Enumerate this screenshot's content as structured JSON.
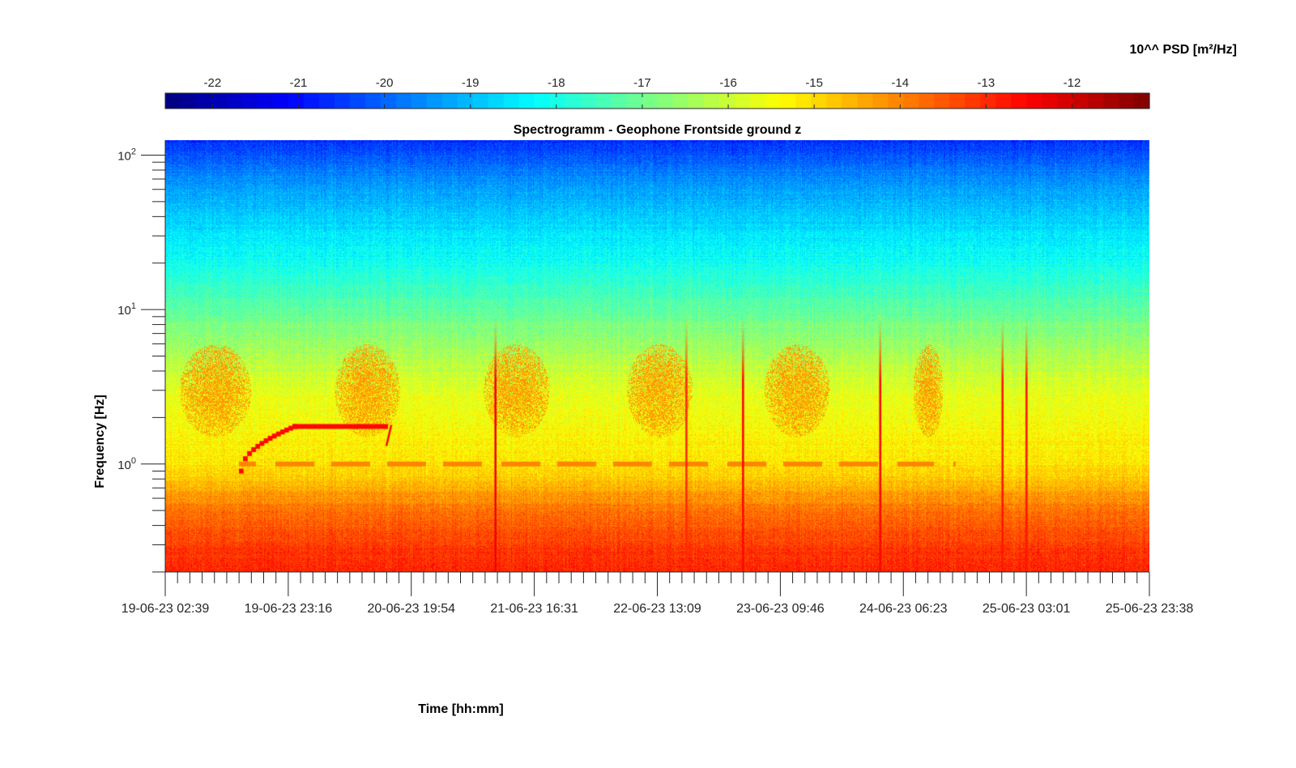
{
  "chart_data": {
    "type": "heatmap",
    "title": "Spectrogramm - Geophone Frontside ground z",
    "xlabel": "Time [hh:mm]",
    "ylabel": "Frequency [Hz]",
    "colorbar_label": "10^^ PSD [m²/Hz]",
    "colorbar_ticks": [
      -22,
      -21,
      -20,
      -19,
      -18,
      -17,
      -16,
      -15,
      -14,
      -13,
      -12
    ],
    "colorbar_range": [
      -22.55,
      -11.1
    ],
    "colormap": "jet",
    "x_tick_labels": [
      "19-06-23 02:39",
      "19-06-23 23:16",
      "20-06-23 19:54",
      "21-06-23 16:31",
      "22-06-23 13:09",
      "23-06-23 09:46",
      "24-06-23 06:23",
      "25-06-23 03:01",
      "25-06-23 23:38"
    ],
    "x_range": [
      "19-06-23 02:39",
      "25-06-23 23:38"
    ],
    "y_scale": "log",
    "y_range": [
      0.2,
      125
    ],
    "y_tick_values": [
      1,
      10,
      100
    ],
    "y_tick_labels": [
      {
        "base": "10",
        "exp": "0"
      },
      {
        "base": "10",
        "exp": "1"
      },
      {
        "base": "10",
        "exp": "2"
      }
    ],
    "psd_profile": [
      {
        "freq_hz": 0.2,
        "log_psd": -12.9
      },
      {
        "freq_hz": 0.3,
        "log_psd": -13.2
      },
      {
        "freq_hz": 0.5,
        "log_psd": -13.8
      },
      {
        "freq_hz": 0.7,
        "log_psd": -14.5
      },
      {
        "freq_hz": 1.0,
        "log_psd": -15.1
      },
      {
        "freq_hz": 2.0,
        "log_psd": -15.5
      },
      {
        "freq_hz": 3.0,
        "log_psd": -15.7
      },
      {
        "freq_hz": 5.0,
        "log_psd": -16.3
      },
      {
        "freq_hz": 8.0,
        "log_psd": -16.9
      },
      {
        "freq_hz": 10.0,
        "log_psd": -17.2
      },
      {
        "freq_hz": 20.0,
        "log_psd": -18.1
      },
      {
        "freq_hz": 40.0,
        "log_psd": -18.8
      },
      {
        "freq_hz": 70.0,
        "log_psd": -19.5
      },
      {
        "freq_hz": 125.0,
        "log_psd": -20.6
      }
    ],
    "features": [
      {
        "kind": "daytime-band",
        "label": "",
        "x_start": "19-06-23 05:00",
        "x_end": "19-06-23 17:00",
        "freq_low_hz": 1.5,
        "freq_high_hz": 6,
        "log_psd": -14.3
      },
      {
        "kind": "daytime-band",
        "label": "",
        "x_start": "20-06-23 07:00",
        "x_end": "20-06-23 18:00",
        "freq_low_hz": 1.5,
        "freq_high_hz": 6,
        "log_psd": -14.3
      },
      {
        "kind": "daytime-band",
        "label": "",
        "x_start": "21-06-23 08:00",
        "x_end": "21-06-23 19:00",
        "freq_low_hz": 1.5,
        "freq_high_hz": 6,
        "log_psd": -14.3
      },
      {
        "kind": "daytime-band",
        "label": "",
        "x_start": "22-06-23 08:00",
        "x_end": "22-06-23 19:00",
        "freq_low_hz": 1.5,
        "freq_high_hz": 6,
        "log_psd": -14.3
      },
      {
        "kind": "daytime-band",
        "label": "",
        "x_start": "23-06-23 07:00",
        "x_end": "23-06-23 18:00",
        "freq_low_hz": 1.5,
        "freq_high_hz": 6,
        "log_psd": -14.3
      },
      {
        "kind": "daytime-band",
        "label": "",
        "x_start": "24-06-23 08:00",
        "x_end": "24-06-23 13:00",
        "freq_low_hz": 1.5,
        "freq_high_hz": 6,
        "log_psd": -14.3
      },
      {
        "kind": "tone-line",
        "label": "",
        "x_start": "19-06-23 15:00",
        "x_end": "24-06-23 15:00",
        "freq_hz": 1.0,
        "log_psd": -14.0
      },
      {
        "kind": "rising-tone",
        "label": "",
        "x_start": "19-06-23 15:00",
        "x_end": "20-06-23 00:00",
        "freq_start_hz": 0.9,
        "freq_end_hz": 1.75,
        "log_psd": -12.6
      },
      {
        "kind": "steady-tone",
        "label": "",
        "x_start": "20-06-23 00:00",
        "x_end": "20-06-23 16:00",
        "freq_hz": 1.75,
        "log_psd": -12.6
      },
      {
        "kind": "transient",
        "label": "",
        "x": "21-06-23 10:00",
        "log_psd": -12.4
      },
      {
        "kind": "transient",
        "label": "",
        "x": "22-06-23 18:00",
        "log_psd": -13.0
      },
      {
        "kind": "transient",
        "label": "",
        "x": "23-06-23 03:30",
        "log_psd": -12.6
      },
      {
        "kind": "transient",
        "label": "",
        "x": "24-06-23 02:30",
        "log_psd": -12.6
      },
      {
        "kind": "transient",
        "label": "",
        "x": "24-06-23 23:00",
        "log_psd": -12.8
      },
      {
        "kind": "transient",
        "label": "",
        "x": "25-06-23 03:01",
        "log_psd": -12.8
      }
    ]
  }
}
